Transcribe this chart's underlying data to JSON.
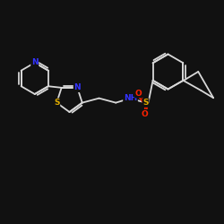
{
  "background_color": "#111111",
  "bond_color": "#d8d8d8",
  "atom_colors": {
    "N": "#3333ff",
    "S": "#ddaa00",
    "O": "#ff2200",
    "C": "#d8d8d8"
  },
  "figsize": [
    2.5,
    2.5
  ],
  "dpi": 100,
  "xlim": [
    0,
    10
  ],
  "ylim": [
    0,
    10
  ]
}
